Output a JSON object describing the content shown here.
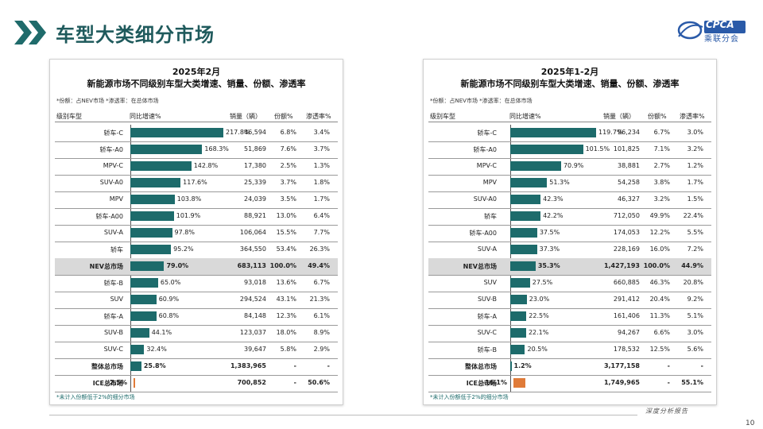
{
  "page": {
    "title": "车型大类细分市场",
    "logo_text": "CPCA",
    "logo_sub": "乘联分会",
    "footer_text": "深度分析报告",
    "page_number": "10"
  },
  "panels": [
    {
      "title1": "2025年2月",
      "title2": "新能源市场不同级别车型大类增速、销量、份额、渗透率",
      "note_top": "*份额：占NEV市场  *渗透率：在总体市场",
      "headers": {
        "cat": "级别车型",
        "yoy": "同比增速%",
        "sales": "销量（辆）",
        "share": "份额%",
        "pen": "渗透率%"
      },
      "note_bottom": "*未计入份额低于2%的细分市场",
      "chart_data": {
        "type": "bar",
        "title": "2025年2月 新能源市场不同级别车型大类增速、销量、份额、渗透率",
        "orientation": "horizontal",
        "series": [
          {
            "name": "同比增速%",
            "unit": "%"
          }
        ],
        "xlim": [
          -2.5,
          217.8
        ],
        "rows": [
          {
            "category": "轿车-C",
            "yoy": 217.8,
            "yoy_label": "217.8%",
            "sales": "46,594",
            "share": "6.8%",
            "pen": "3.4%"
          },
          {
            "category": "轿车-A0",
            "yoy": 168.3,
            "yoy_label": "168.3%",
            "sales": "51,869",
            "share": "7.6%",
            "pen": "3.7%"
          },
          {
            "category": "MPV-C",
            "yoy": 142.8,
            "yoy_label": "142.8%",
            "sales": "17,380",
            "share": "2.5%",
            "pen": "1.3%"
          },
          {
            "category": "SUV-A0",
            "yoy": 117.6,
            "yoy_label": "117.6%",
            "sales": "25,339",
            "share": "3.7%",
            "pen": "1.8%"
          },
          {
            "category": "MPV",
            "yoy": 103.8,
            "yoy_label": "103.8%",
            "sales": "24,039",
            "share": "3.5%",
            "pen": "1.7%"
          },
          {
            "category": "轿车-A00",
            "yoy": 101.9,
            "yoy_label": "101.9%",
            "sales": "88,921",
            "share": "13.0%",
            "pen": "6.4%"
          },
          {
            "category": "SUV-A",
            "yoy": 97.8,
            "yoy_label": "97.8%",
            "sales": "106,064",
            "share": "15.5%",
            "pen": "7.7%"
          },
          {
            "category": "轿车",
            "yoy": 95.2,
            "yoy_label": "95.2%",
            "sales": "364,550",
            "share": "53.4%",
            "pen": "26.3%"
          },
          {
            "category": "NEV总市场",
            "yoy": 79.0,
            "yoy_label": "79.0%",
            "sales": "683,113",
            "share": "100.0%",
            "pen": "49.4%",
            "highlight": true
          },
          {
            "category": "轿车-B",
            "yoy": 65.0,
            "yoy_label": "65.0%",
            "sales": "93,018",
            "share": "13.6%",
            "pen": "6.7%"
          },
          {
            "category": "SUV",
            "yoy": 60.9,
            "yoy_label": "60.9%",
            "sales": "294,524",
            "share": "43.1%",
            "pen": "21.3%"
          },
          {
            "category": "轿车-A",
            "yoy": 60.8,
            "yoy_label": "60.8%",
            "sales": "84,148",
            "share": "12.3%",
            "pen": "6.1%"
          },
          {
            "category": "SUV-B",
            "yoy": 44.1,
            "yoy_label": "44.1%",
            "sales": "123,037",
            "share": "18.0%",
            "pen": "8.9%"
          },
          {
            "category": "SUV-C",
            "yoy": 32.4,
            "yoy_label": "32.4%",
            "sales": "39,647",
            "share": "5.8%",
            "pen": "2.9%"
          },
          {
            "category": "整体总市场",
            "yoy": 25.8,
            "yoy_label": "25.8%",
            "sales": "1,383,965",
            "share": "-",
            "pen": "-",
            "bold": true
          },
          {
            "category": "ICE总市场",
            "yoy": -2.5,
            "yoy_label": "-2.5%",
            "sales": "700,852",
            "share": "-",
            "pen": "50.6%",
            "bold": true
          }
        ]
      }
    },
    {
      "title1": "2025年1-2月",
      "title2": "新能源市场不同级别车型大类增速、销量、份额、渗透率",
      "note_top": "*份额：占NEV市场  *渗透率：在总体市场",
      "headers": {
        "cat": "级别车型",
        "yoy": "同比增速%",
        "sales": "销量（辆）",
        "share": "份额%",
        "pen": "渗透率%"
      },
      "note_bottom": "*未计入份额低于2%的细分市场",
      "chart_data": {
        "type": "bar",
        "title": "2025年1-2月 新能源市场不同级别车型大类增速、销量、份额、渗透率",
        "orientation": "horizontal",
        "series": [
          {
            "name": "同比增速%",
            "unit": "%"
          }
        ],
        "xlim": [
          -16.1,
          119.7
        ],
        "rows": [
          {
            "category": "轿车-C",
            "yoy": 119.7,
            "yoy_label": "119.7%",
            "sales": "96,234",
            "share": "6.7%",
            "pen": "3.0%"
          },
          {
            "category": "轿车-A0",
            "yoy": 101.5,
            "yoy_label": "101.5%",
            "sales": "101,825",
            "share": "7.1%",
            "pen": "3.2%"
          },
          {
            "category": "MPV-C",
            "yoy": 70.9,
            "yoy_label": "70.9%",
            "sales": "38,881",
            "share": "2.7%",
            "pen": "1.2%"
          },
          {
            "category": "MPV",
            "yoy": 51.3,
            "yoy_label": "51.3%",
            "sales": "54,258",
            "share": "3.8%",
            "pen": "1.7%"
          },
          {
            "category": "SUV-A0",
            "yoy": 42.3,
            "yoy_label": "42.3%",
            "sales": "46,327",
            "share": "3.2%",
            "pen": "1.5%"
          },
          {
            "category": "轿车",
            "yoy": 42.2,
            "yoy_label": "42.2%",
            "sales": "712,050",
            "share": "49.9%",
            "pen": "22.4%"
          },
          {
            "category": "轿车-A00",
            "yoy": 37.5,
            "yoy_label": "37.5%",
            "sales": "174,053",
            "share": "12.2%",
            "pen": "5.5%"
          },
          {
            "category": "SUV-A",
            "yoy": 37.3,
            "yoy_label": "37.3%",
            "sales": "228,169",
            "share": "16.0%",
            "pen": "7.2%"
          },
          {
            "category": "NEV总市场",
            "yoy": 35.3,
            "yoy_label": "35.3%",
            "sales": "1,427,193",
            "share": "100.0%",
            "pen": "44.9%",
            "highlight": true
          },
          {
            "category": "SUV",
            "yoy": 27.5,
            "yoy_label": "27.5%",
            "sales": "660,885",
            "share": "46.3%",
            "pen": "20.8%"
          },
          {
            "category": "SUV-B",
            "yoy": 23.0,
            "yoy_label": "23.0%",
            "sales": "291,412",
            "share": "20.4%",
            "pen": "9.2%"
          },
          {
            "category": "轿车-A",
            "yoy": 22.5,
            "yoy_label": "22.5%",
            "sales": "161,406",
            "share": "11.3%",
            "pen": "5.1%"
          },
          {
            "category": "SUV-C",
            "yoy": 22.1,
            "yoy_label": "22.1%",
            "sales": "94,267",
            "share": "6.6%",
            "pen": "3.0%"
          },
          {
            "category": "轿车-B",
            "yoy": 20.5,
            "yoy_label": "20.5%",
            "sales": "178,532",
            "share": "12.5%",
            "pen": "5.6%"
          },
          {
            "category": "整体总市场",
            "yoy": 1.2,
            "yoy_label": "1.2%",
            "sales": "3,177,158",
            "share": "-",
            "pen": "-",
            "bold": true
          },
          {
            "category": "ICE总市场",
            "yoy": -16.1,
            "yoy_label": "-16.1%",
            "sales": "1,749,965",
            "share": "-",
            "pen": "55.1%",
            "bold": true
          }
        ]
      }
    }
  ]
}
